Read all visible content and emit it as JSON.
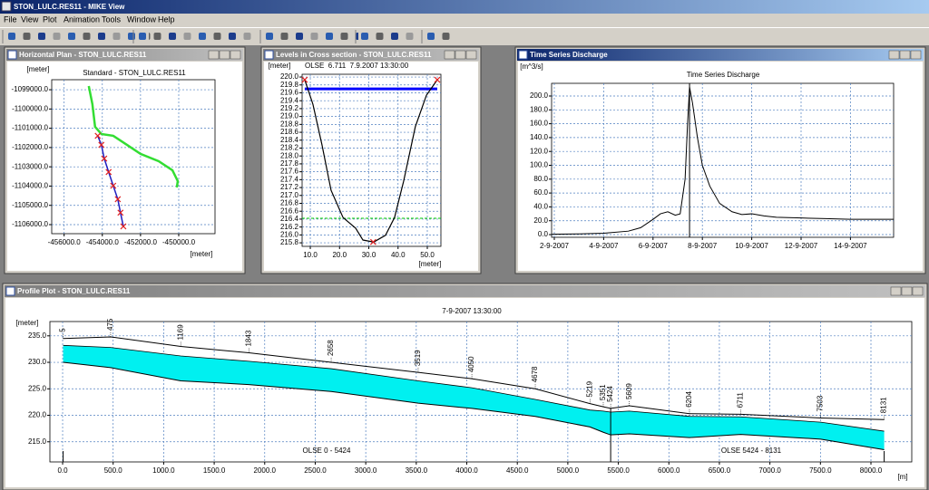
{
  "window_title": "STON_LULC.RES11 - MIKE View",
  "menu": [
    "File",
    "View",
    "Plot",
    "Animation",
    "Tools",
    "Window",
    "Help"
  ],
  "panels": [
    {
      "window_title": "Horizontal Plan - STON_LULC.RES11",
      "chart_data": {
        "type": "line",
        "title": "Standard - STON_LULC.RES11",
        "y_label": "[meter]",
        "x_label": "[meter]",
        "xlim": [
          -456650,
          -448100
        ],
        "ylim": [
          -1106470,
          -1098480
        ],
        "grid": true,
        "xticks": [
          {
            "value": -456000,
            "label": "-456000.0"
          },
          {
            "value": -454000,
            "label": "-454000.0"
          },
          {
            "value": -452000,
            "label": "-452000.0"
          },
          {
            "value": -450000,
            "label": "-450000.0"
          }
        ],
        "yticks": [
          {
            "value": -1099000,
            "label": "-1099000.0"
          },
          {
            "value": -1100000,
            "label": "-1100000.0"
          },
          {
            "value": -1101000,
            "label": "-1101000.0"
          },
          {
            "value": -1102000,
            "label": "-1102000.0"
          },
          {
            "value": -1103000,
            "label": "-1103000.0"
          },
          {
            "value": -1104000,
            "label": "-1104000.0"
          },
          {
            "value": -1105000,
            "label": "-1105000.0"
          },
          {
            "value": -1106000,
            "label": "-1106000.0"
          }
        ],
        "series": [
          {
            "color": "#33dd33",
            "width": 2.5,
            "x": [
              -454710,
              -454520,
              -454380,
              -454050,
              -453430,
              -452710,
              -452000,
              -451050,
              -450330,
              -450050,
              -450100
            ],
            "values": [
              -1098810,
              -1099750,
              -1100920,
              -1101300,
              -1101390,
              -1101860,
              -1102330,
              -1102710,
              -1103180,
              -1103740,
              -1104070
            ]
          },
          {
            "color": "#2020c0",
            "width": 1.5,
            "marker": "x",
            "marker_color": "#e02020",
            "x": [
              -454240,
              -454050,
              -453900,
              -453670,
              -453430,
              -453190,
              -453050,
              -452900
            ],
            "values": [
              -1101390,
              -1101860,
              -1102570,
              -1103270,
              -1103980,
              -1104680,
              -1105380,
              -1106090
            ]
          }
        ]
      }
    },
    {
      "window_title": "Levels in Cross section - STON_LULC.RES11",
      "chart_data": {
        "type": "line",
        "y_label": "[meter]",
        "subtitle": "OLSE  6.711  7.9.2007 13:30:00",
        "x_label": "[meter]",
        "xlim": [
          7.2,
          54.65
        ],
        "ylim": [
          215.71,
          220.07
        ],
        "grid": true,
        "xticks": [
          {
            "value": 10,
            "label": "10.0"
          },
          {
            "value": 20,
            "label": "20.0"
          },
          {
            "value": 30,
            "label": "30.0"
          },
          {
            "value": 40,
            "label": "40.0"
          },
          {
            "value": 50,
            "label": "50.0"
          }
        ],
        "yticks": [
          215.8,
          {
            "value": 216,
            "label": "216.0"
          },
          216.2,
          216.4,
          216.6,
          216.8,
          {
            "value": 217,
            "label": "217.0"
          },
          217.2,
          217.4,
          217.6,
          217.8,
          {
            "value": 218,
            "label": "218.0"
          },
          218.2,
          218.4,
          218.6,
          218.8,
          {
            "value": 219,
            "label": "219.0"
          },
          219.2,
          219.4,
          219.6,
          219.8,
          {
            "value": 220,
            "label": "220.0"
          }
        ],
        "series": [
          {
            "color": "#00cc00",
            "width": 1,
            "dash": true,
            "x": [
              7.2,
              54.65
            ],
            "values": [
              216.42,
              216.42
            ]
          },
          {
            "color": "#0000ff",
            "width": 3,
            "x": [
              8.1,
              53.4
            ],
            "values": [
              219.7,
              219.7
            ]
          },
          {
            "color": "#000000",
            "width": 1.2,
            "x": [
              8.1,
              10.9,
              14.0,
              17.1,
              21.2,
              25.5,
              28.0,
              31.7,
              35.7,
              38.8,
              41.9,
              45.9,
              49.7,
              53.4
            ],
            "values": [
              219.93,
              219.31,
              218.28,
              217.13,
              216.44,
              216.17,
              215.87,
              215.82,
              215.99,
              216.44,
              217.36,
              218.74,
              219.54,
              219.93
            ]
          },
          {
            "marker": "x",
            "marker_color": "#e02020",
            "x": [
              8.1,
              31.5,
              53.4
            ],
            "values": [
              219.93,
              215.82,
              219.93
            ]
          }
        ]
      }
    },
    {
      "window_title": "Time Series Discharge",
      "chart_data": {
        "type": "line",
        "title": "Time Series Discharge",
        "y_label": "[m^3/s]",
        "xlim": [
          1.89,
          15.75
        ],
        "ylim": [
          -3.9,
          218.3
        ],
        "grid": true,
        "cursor_x": 7.48,
        "xticks": [
          {
            "value": 2,
            "label": "2-9-2007"
          },
          {
            "value": 4,
            "label": "4-9-2007"
          },
          {
            "value": 6,
            "label": "6-9-2007"
          },
          {
            "value": 8,
            "label": "8-9-2007"
          },
          {
            "value": 10,
            "label": "10-9-2007"
          },
          {
            "value": 12,
            "label": "12-9-2007"
          },
          {
            "value": 14,
            "label": "14-9-2007"
          }
        ],
        "yticks": [
          {
            "value": 0,
            "label": "0.0"
          },
          {
            "value": 20,
            "label": "20.0"
          },
          {
            "value": 40,
            "label": "40.0"
          },
          {
            "value": 60,
            "label": "60.0"
          },
          {
            "value": 80,
            "label": "80.0"
          },
          {
            "value": 100,
            "label": "100.0"
          },
          {
            "value": 120,
            "label": "120.0"
          },
          {
            "value": 140,
            "label": "140.0"
          },
          {
            "value": 160,
            "label": "160.0"
          },
          {
            "value": 180,
            "label": "180.0"
          },
          {
            "value": 200,
            "label": "200.0"
          }
        ],
        "series": [
          {
            "color": "#000000",
            "width": 1,
            "x": [
              1.9,
              3,
              4,
              5,
              5.5,
              6,
              6.3,
              6.6,
              6.9,
              7.1,
              7.3,
              7.4,
              7.48,
              7.6,
              7.8,
              8.0,
              8.3,
              8.7,
              9.2,
              9.6,
              10,
              10.5,
              11,
              12,
              13,
              14,
              15,
              15.75
            ],
            "values": [
              0.5,
              1,
              2,
              5,
              10,
              22,
              30,
              33,
              28,
              30,
              80,
              160,
              213,
              190,
              140,
              100,
              70,
              45,
              33,
              29,
              30,
              27,
              25,
              24,
              23,
              22,
              22,
              22
            ]
          }
        ]
      }
    },
    {
      "window_title": "Profile Plot - STON_LULC.RES11",
      "chart_data": {
        "type": "profile",
        "title": "7-9-2007 13:30:00",
        "y_label": "[meter]",
        "x_label": "[m]",
        "branches": [
          "OLSE 0 - 5424",
          "OLSE 5424 - 8131"
        ],
        "xlim": [
          -126,
          8404
        ],
        "ylim": [
          211.2,
          237.7
        ],
        "grid": true,
        "xticks": [
          {
            "value": 0,
            "label": "0.0"
          },
          {
            "value": 500,
            "label": "500.0"
          },
          {
            "value": 1000,
            "label": "1000.0"
          },
          {
            "value": 1500,
            "label": "1500.0"
          },
          {
            "value": 2000,
            "label": "2000.0"
          },
          {
            "value": 2500,
            "label": "2500.0"
          },
          {
            "value": 3000,
            "label": "3000.0"
          },
          {
            "value": 3500,
            "label": "3500.0"
          },
          {
            "value": 4000,
            "label": "4000.0"
          },
          {
            "value": 4500,
            "label": "4500.0"
          },
          {
            "value": 5000,
            "label": "5000.0"
          },
          {
            "value": 5500,
            "label": "5500.0"
          },
          {
            "value": 6000,
            "label": "6000.0"
          },
          {
            "value": 6500,
            "label": "6500.0"
          },
          {
            "value": 7000,
            "label": "7000.0"
          },
          {
            "value": 7500,
            "label": "7500.0"
          },
          {
            "value": 8000,
            "label": "8000.0"
          }
        ],
        "yticks": [
          {
            "value": 215,
            "label": "215.0"
          },
          {
            "value": 220,
            "label": "220.0"
          },
          {
            "value": 225,
            "label": "225.0"
          },
          {
            "value": 230,
            "label": "230.0"
          },
          {
            "value": 235,
            "label": "235.0"
          }
        ],
        "x": [
          5,
          475,
          1169,
          1843,
          2658,
          3519,
          4050,
          4678,
          5219,
          5351,
          5424,
          5609,
          6204,
          6711,
          7503,
          8131
        ],
        "series": [
          {
            "color": "#000000",
            "width": 1,
            "values": [
              234.5,
              234.8,
              233.0,
              231.8,
              230.0,
              228.1,
              226.9,
              225.0,
              222.2,
              221.6,
              221.3,
              221.8,
              220.3,
              220.2,
              219.5,
              219.2
            ]
          },
          {
            "color": "#000000",
            "width": 0.8,
            "fill": "#00f0f0",
            "values": [
              233.2,
              232.8,
              231.2,
              230.2,
              228.8,
              226.5,
              225.2,
              223.0,
              221.0,
              220.8,
              220.6,
              220.8,
              219.8,
              219.7,
              218.7,
              217.0
            ]
          },
          {
            "color": "#000000",
            "width": 1,
            "values": [
              230.0,
              229.0,
              226.5,
              225.8,
              224.5,
              222.3,
              221.3,
              219.8,
              217.8,
              216.8,
              216.3,
              216.5,
              215.8,
              216.4,
              215.5,
              213.5
            ]
          }
        ]
      }
    }
  ]
}
